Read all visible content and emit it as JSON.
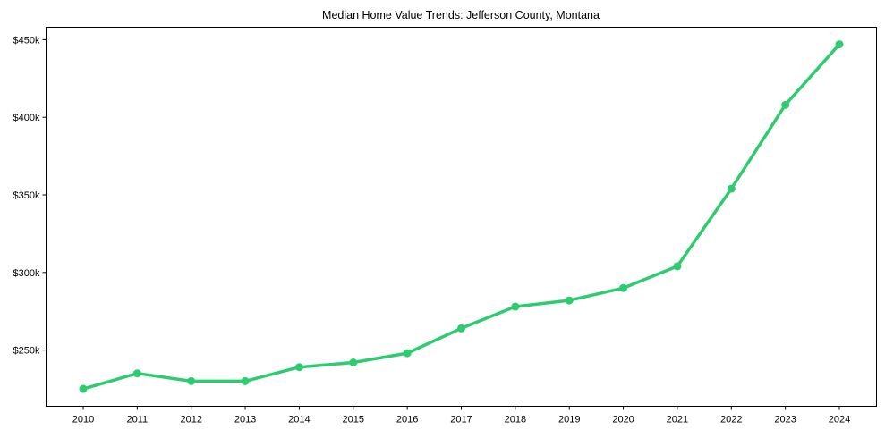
{
  "chart_data": {
    "type": "line",
    "title": "Median Home Value Trends: Jefferson County, Montana",
    "xlabel": "",
    "ylabel": "",
    "categories": [
      "2010",
      "2011",
      "2012",
      "2013",
      "2014",
      "2015",
      "2016",
      "2017",
      "2018",
      "2019",
      "2020",
      "2021",
      "2022",
      "2023",
      "2024"
    ],
    "series": [
      {
        "name": "Median Home Value",
        "color": "#2ecc71",
        "values": [
          225000,
          235000,
          230000,
          230000,
          239000,
          242000,
          248000,
          264000,
          278000,
          282000,
          290000,
          304000,
          354000,
          408000,
          447000
        ]
      }
    ],
    "y_ticks": [
      250000,
      300000,
      350000,
      400000,
      450000
    ],
    "y_tick_labels": [
      "$250k",
      "$300k",
      "$350k",
      "$400k",
      "$450k"
    ],
    "ylim": [
      213800,
      458000
    ],
    "grid": false,
    "legend": null,
    "markers": true
  }
}
